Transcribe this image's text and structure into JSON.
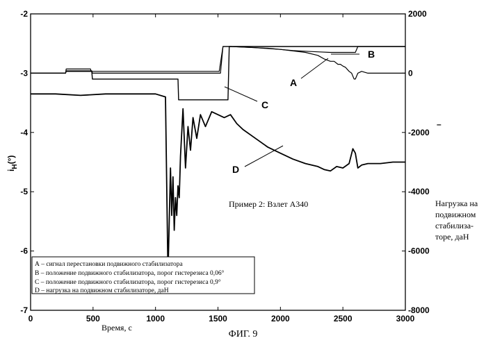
{
  "chart_data": {
    "type": "line",
    "title": "Пример 2: Взлет А340",
    "xlabel": "Время, с",
    "ylabel_left": "i_H (°)",
    "ylabel_left_main": "i",
    "ylabel_left_sub": "H",
    "ylabel_left_unit": "(°)",
    "ylabel_right": "Нагрузка на подвижном стабилиза-торе, даН",
    "ylabel_right_lines": [
      "Нагрузка на",
      "подвижном",
      "стабилиза-",
      "торе, даН"
    ],
    "right_axis_dash": "–",
    "xlim": [
      0,
      3000
    ],
    "ylim_left": [
      -7,
      -2
    ],
    "ylim_right": [
      -8000,
      2000
    ],
    "xticks": [
      0,
      500,
      1000,
      1500,
      2000,
      2500,
      3000
    ],
    "yticks_left": [
      -7,
      -6,
      -5,
      -4,
      -3,
      -2
    ],
    "yticks_right": [
      -8000,
      -6000,
      -4000,
      -2000,
      0,
      2000
    ],
    "grid": false,
    "series": [
      {
        "name": "A",
        "axis": "left",
        "x": [
          0,
          280,
          285,
          480,
          485,
          1510,
          1540,
          1600,
          1800,
          2000,
          2200,
          2300,
          2350,
          2400,
          2430,
          2460,
          2480,
          2500,
          2520,
          2550,
          2570,
          2580,
          2590,
          2600,
          2620,
          2650,
          2700,
          2800,
          2900,
          3000
        ],
        "y": [
          -3.0,
          -3.0,
          -2.93,
          -2.93,
          -2.97,
          -2.97,
          -2.55,
          -2.55,
          -2.57,
          -2.6,
          -2.65,
          -2.7,
          -2.76,
          -2.8,
          -2.8,
          -2.85,
          -2.85,
          -2.88,
          -2.9,
          -2.97,
          -3.0,
          -3.05,
          -3.1,
          -3.1,
          -3.0,
          -2.97,
          -3.0,
          -3.0,
          -3.0,
          -3.0
        ]
      },
      {
        "name": "B",
        "axis": "left",
        "x": [
          0,
          280,
          285,
          490,
          495,
          1520,
          1540,
          1600,
          1700,
          1800,
          1900,
          2000,
          2100,
          2200,
          2300,
          2400,
          2500,
          2600,
          2620,
          3000
        ],
        "y": [
          -3.0,
          -3.0,
          -2.96,
          -2.96,
          -3.0,
          -3.0,
          -2.55,
          -2.55,
          -2.56,
          -2.57,
          -2.58,
          -2.6,
          -2.62,
          -2.63,
          -2.64,
          -2.65,
          -2.65,
          -2.65,
          -2.55,
          -2.55
        ]
      },
      {
        "name": "C",
        "axis": "left",
        "x": [
          0,
          280,
          285,
          490,
          495,
          1180,
          1185,
          1580,
          1590,
          3000
        ],
        "y": [
          -3.0,
          -3.0,
          -2.97,
          -2.97,
          -3.1,
          -3.1,
          -3.45,
          -3.45,
          -2.55,
          -2.55
        ]
      },
      {
        "name": "D",
        "axis": "right",
        "x": [
          0,
          200,
          400,
          600,
          800,
          1000,
          1080,
          1100,
          1120,
          1130,
          1140,
          1150,
          1160,
          1170,
          1180,
          1190,
          1200,
          1220,
          1240,
          1260,
          1280,
          1300,
          1330,
          1360,
          1400,
          1450,
          1500,
          1550,
          1600,
          1650,
          1700,
          1800,
          1900,
          2000,
          2100,
          2200,
          2300,
          2350,
          2400,
          2450,
          2500,
          2550,
          2580,
          2600,
          2620,
          2650,
          2700,
          2800,
          2900,
          3000
        ],
        "y": [
          -700,
          -700,
          -750,
          -700,
          -700,
          -700,
          -800,
          -6800,
          -3200,
          -4800,
          -3500,
          -5300,
          -4200,
          -4800,
          -3800,
          -4200,
          -2800,
          -1200,
          -3200,
          -1800,
          -2600,
          -1500,
          -2200,
          -1400,
          -1800,
          -1300,
          -1400,
          -1500,
          -1400,
          -1700,
          -1900,
          -2200,
          -2500,
          -2700,
          -2900,
          -3050,
          -3150,
          -3250,
          -3300,
          -3150,
          -3200,
          -3050,
          -2550,
          -2700,
          -3200,
          -3100,
          -3050,
          -3050,
          -3000,
          -3000
        ]
      }
    ],
    "legend": {
      "placement": "bottom-left",
      "entries": [
        "А – сигнал перестановки подвижного стабилизатора",
        "В – положение подвижного стабилизатора, порог гистерезиса 0,06°",
        "С – положение подвижного стабилизатора, порог гистерезиса 0,9°",
        "D – нагрузка на подвижном стабилизаторе, даН"
      ]
    },
    "annotations": [
      {
        "label": "A",
        "series": "A"
      },
      {
        "label": "B",
        "series": "B"
      },
      {
        "label": "C",
        "series": "C"
      },
      {
        "label": "D",
        "series": "D"
      }
    ]
  },
  "caption": "ФИГ. 9"
}
